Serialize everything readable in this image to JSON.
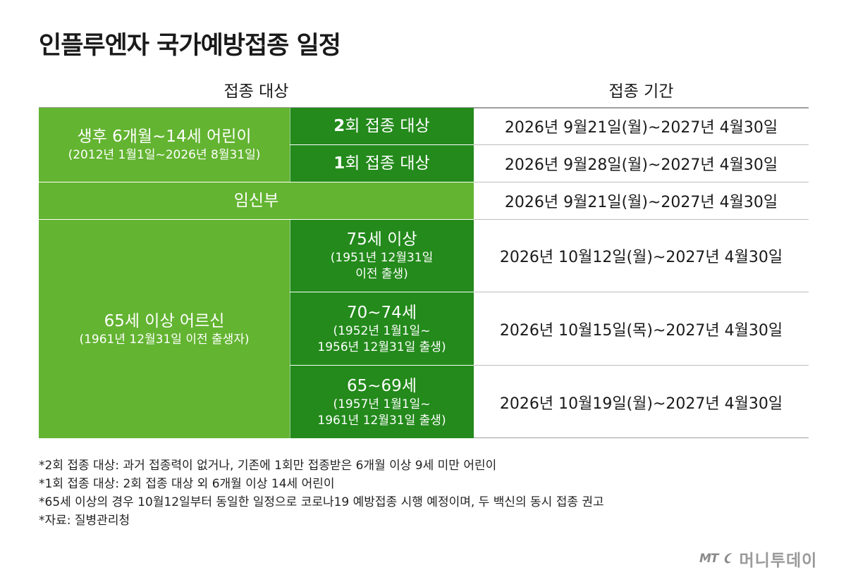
{
  "title": "인플루엔자 국가예방접종 일정",
  "headers": {
    "target": "접종 대상",
    "period": "접종 기간"
  },
  "rows": {
    "children": {
      "label": "생후 6개월~14세 어린이",
      "sub": "(2012년 1월1일~2026년 8월31일)",
      "dose2": {
        "num": "2",
        "label": "회 접종 대상",
        "period": "2026년 9월21일(월)~2027년 4월30일"
      },
      "dose1": {
        "num": "1",
        "label": "회 접종 대상",
        "period": "2026년 9월28일(월)~2027년 4월30일"
      }
    },
    "pregnant": {
      "label": "임신부",
      "period": "2026년 9월21일(월)~2027년 4월30일"
    },
    "elderly": {
      "label": "65세 이상 어르신",
      "sub": "(1961년 12월31일 이전 출생자)",
      "g75": {
        "label": "75세 이상",
        "sub1": "(1951년 12월31일",
        "sub2": "이전 출생)",
        "period": "2026년 10월12일(월)~2027년 4월30일"
      },
      "g70": {
        "label": "70~74세",
        "sub1": "(1952년 1월1일~",
        "sub2": "1956년 12월31일 출생)",
        "period": "2026년 10월15일(목)~2027년 4월30일"
      },
      "g65": {
        "label": "65~69세",
        "sub1": "(1957년 1월1일~",
        "sub2": "1961년 12월31일 출생)",
        "period": "2026년 10월19일(월)~2027년 4월30일"
      }
    }
  },
  "notes": [
    "*2회 접종 대상: 과거 접종력이 없거나, 기존에 1회만 접종받은 6개월 이상 9세 미만 어린이",
    "*1회 접종 대상: 2회 접종 대상 외 6개월 이상 14세 어린이",
    "*65세 이상의 경우 10월12일부터 동일한 일정으로 코로나19 예방접종 시행 예정이며, 두 백신의 동시 접종 권고",
    "*자료: 질병관리청"
  ],
  "logo": {
    "mark": "MT",
    "name": "머니투데이"
  },
  "colors": {
    "light_green": "#63b431",
    "dark_green": "#238a1b"
  }
}
